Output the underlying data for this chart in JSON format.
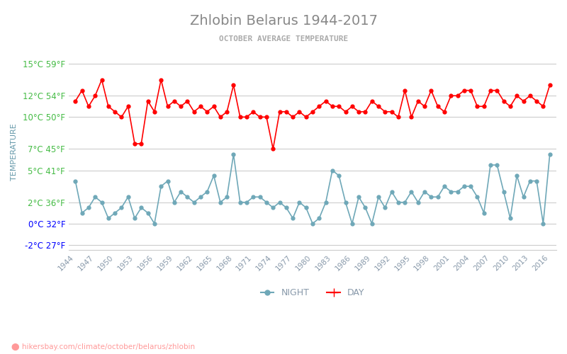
{
  "title": "Zhlobin Belarus 1944-2017",
  "subtitle": "OCTOBER AVERAGE TEMPERATURE",
  "xlabel": "",
  "ylabel": "TEMPERATURE",
  "bg_color": "#ffffff",
  "grid_color": "#cccccc",
  "day_color": "#ff0000",
  "night_color": "#6fa8b8",
  "title_color": "#888888",
  "subtitle_color": "#aaaaaa",
  "ylabel_color": "#6699aa",
  "ytick_color": "#44bb44",
  "ytick_color_zero": "#0000ff",
  "ytick_color_neg": "#0000ff",
  "xtick_color": "#8899aa",
  "watermark": "hikersbay.com/climate/october/belarus/zhlobin",
  "legend_night": "NIGHT",
  "legend_day": "DAY",
  "years": [
    1944,
    1945,
    1946,
    1947,
    1948,
    1949,
    1950,
    1951,
    1952,
    1953,
    1954,
    1955,
    1956,
    1957,
    1958,
    1959,
    1960,
    1961,
    1962,
    1963,
    1964,
    1965,
    1966,
    1967,
    1968,
    1969,
    1970,
    1971,
    1972,
    1973,
    1974,
    1975,
    1976,
    1977,
    1978,
    1979,
    1980,
    1981,
    1982,
    1983,
    1984,
    1985,
    1986,
    1987,
    1988,
    1989,
    1990,
    1991,
    1992,
    1993,
    1994,
    1995,
    1996,
    1997,
    1998,
    1999,
    2000,
    2001,
    2002,
    2003,
    2004,
    2005,
    2006,
    2007,
    2008,
    2009,
    2010,
    2011,
    2012,
    2013,
    2014,
    2015,
    2016
  ],
  "day_temps": [
    11.5,
    12.5,
    11.0,
    12.0,
    13.5,
    11.0,
    10.5,
    10.0,
    11.0,
    7.5,
    7.5,
    11.5,
    10.5,
    13.5,
    11.0,
    11.5,
    11.0,
    11.5,
    10.5,
    11.0,
    10.5,
    11.0,
    10.0,
    10.5,
    13.0,
    10.0,
    10.0,
    10.5,
    10.0,
    10.0,
    7.0,
    10.5,
    10.5,
    10.0,
    10.5,
    10.0,
    10.5,
    11.0,
    11.5,
    11.0,
    11.0,
    10.5,
    11.0,
    10.5,
    10.5,
    11.5,
    11.0,
    10.5,
    10.5,
    10.0,
    12.5,
    10.0,
    11.5,
    11.0,
    12.5,
    11.0,
    10.5,
    12.0,
    12.0,
    12.5,
    12.5,
    11.0,
    11.0,
    12.5,
    12.5,
    11.5,
    11.0,
    12.0,
    11.5,
    12.0,
    11.5,
    11.0,
    13.0
  ],
  "night_temps": [
    4.0,
    1.0,
    1.5,
    2.5,
    2.0,
    0.5,
    1.0,
    1.5,
    2.5,
    0.5,
    1.5,
    1.0,
    0.0,
    3.5,
    4.0,
    2.0,
    3.0,
    2.5,
    2.0,
    2.5,
    3.0,
    4.5,
    2.0,
    2.5,
    6.5,
    2.0,
    2.0,
    2.5,
    2.5,
    2.0,
    1.5,
    2.0,
    1.5,
    0.5,
    2.0,
    1.5,
    0.0,
    0.5,
    2.0,
    5.0,
    4.5,
    2.0,
    0.0,
    2.5,
    1.5,
    0.0,
    2.5,
    1.5,
    3.0,
    2.0,
    2.0,
    3.0,
    2.0,
    3.0,
    2.5,
    2.5,
    3.5,
    3.0,
    3.0,
    3.5,
    3.5,
    2.5,
    1.0,
    5.5,
    5.5,
    3.0,
    0.5,
    4.5,
    2.5,
    4.0,
    4.0,
    0.0,
    6.5
  ],
  "ylim": [
    -2.5,
    16.0
  ],
  "yticks_celsius": [
    -2,
    0,
    2,
    5,
    7,
    10,
    12,
    15
  ],
  "yticks_fahrenheit": [
    27,
    32,
    36,
    41,
    45,
    50,
    54,
    59
  ],
  "xtick_years": [
    1944,
    1947,
    1950,
    1953,
    1956,
    1959,
    1962,
    1965,
    1968,
    1971,
    1974,
    1977,
    1980,
    1983,
    1986,
    1989,
    1992,
    1995,
    1998,
    2001,
    2004,
    2007,
    2010,
    2013,
    2016
  ]
}
